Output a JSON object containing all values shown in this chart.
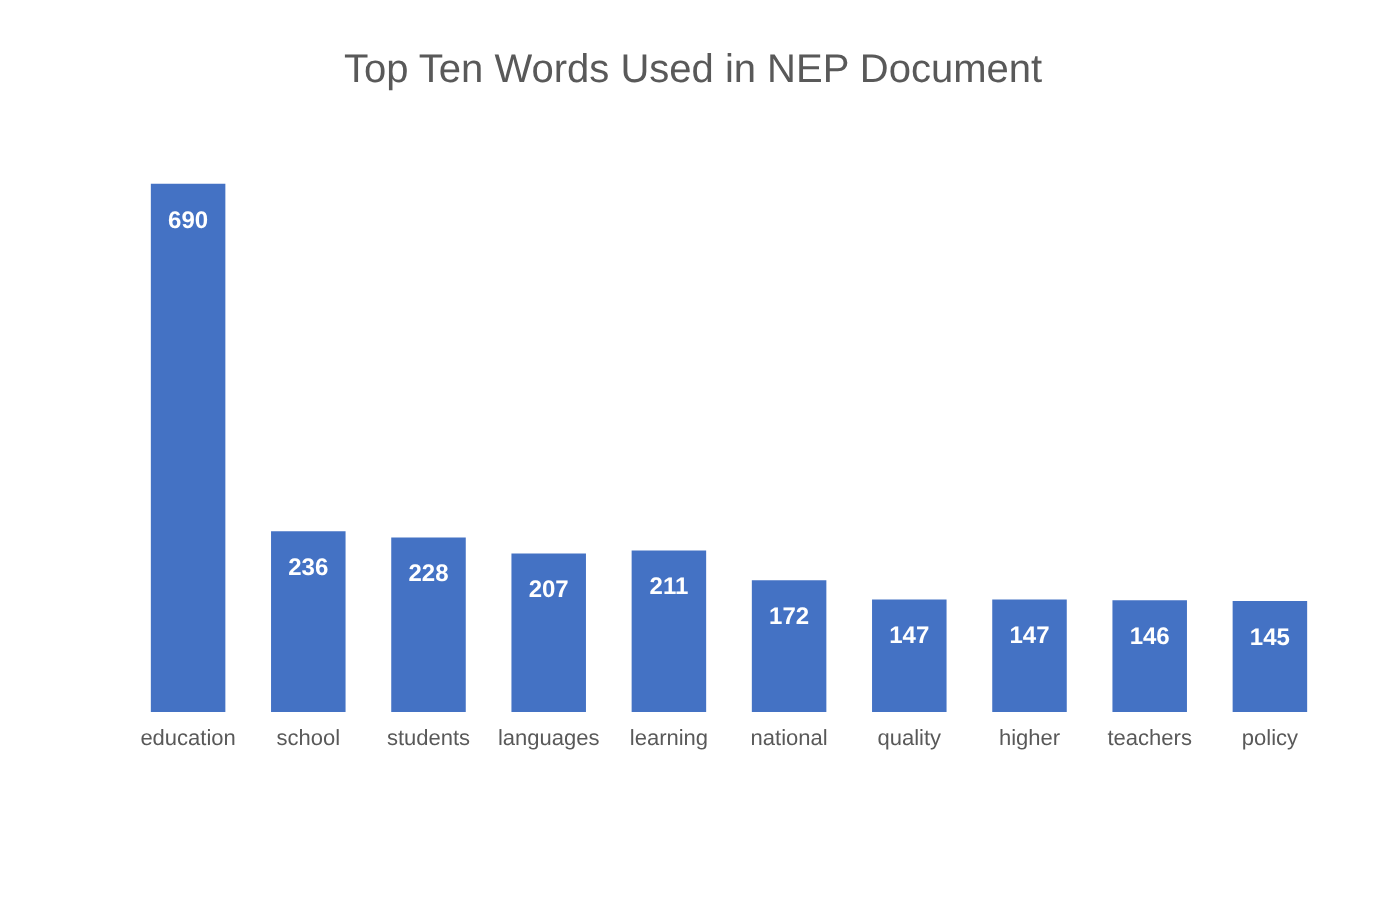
{
  "chart_data": {
    "type": "bar",
    "title": "Top Ten Words Used in NEP Document",
    "categories": [
      "education",
      "school",
      "students",
      "languages",
      "learning",
      "national",
      "quality",
      "higher",
      "teachers",
      "policy"
    ],
    "values": [
      690,
      236,
      228,
      207,
      211,
      172,
      147,
      147,
      146,
      145
    ],
    "color": "#4472c4",
    "data_labels": true
  }
}
